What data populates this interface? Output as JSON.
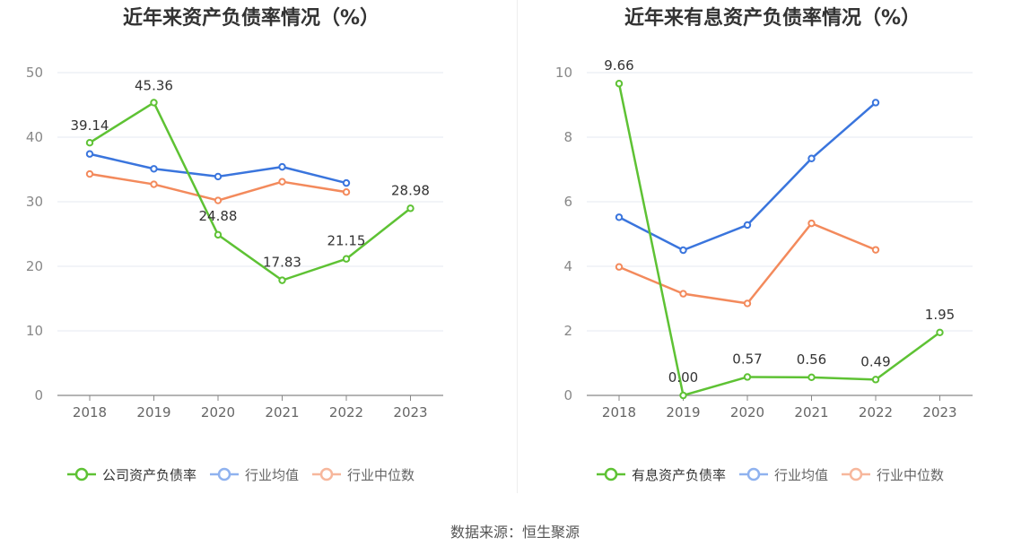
{
  "chart_data": [
    {
      "type": "line",
      "title": "近年来资产负债率情况（%）",
      "categories": [
        "2018",
        "2019",
        "2020",
        "2021",
        "2022",
        "2023"
      ],
      "ylim": [
        0,
        50
      ],
      "yticks": [
        0,
        10,
        20,
        30,
        40,
        50
      ],
      "grid": true,
      "legend_position": "bottom",
      "series": [
        {
          "name": "公司资产负债率",
          "color": "#5ec234",
          "values": [
            39.14,
            45.36,
            24.88,
            17.83,
            21.15,
            28.98
          ],
          "labels": [
            "39.14",
            "45.36",
            "24.88",
            "17.83",
            "21.15",
            "28.98"
          ]
        },
        {
          "name": "行业均值",
          "color": "#3a75dd",
          "values": [
            37.4,
            35.1,
            33.9,
            35.4,
            32.9,
            null
          ]
        },
        {
          "name": "行业中位数",
          "color": "#f38a5c",
          "values": [
            34.3,
            32.7,
            30.2,
            33.1,
            31.5,
            null
          ]
        }
      ]
    },
    {
      "type": "line",
      "title": "近年来有息资产负债率情况（%）",
      "categories": [
        "2018",
        "2019",
        "2020",
        "2021",
        "2022",
        "2023"
      ],
      "ylim": [
        0,
        10
      ],
      "yticks": [
        0,
        2,
        4,
        6,
        8,
        10
      ],
      "grid": true,
      "legend_position": "bottom",
      "series": [
        {
          "name": "有息资产负债率",
          "color": "#5ec234",
          "values": [
            9.66,
            0.0,
            0.57,
            0.56,
            0.49,
            1.95
          ],
          "labels": [
            "9.66",
            "0.00",
            "0.57",
            "0.56",
            "0.49",
            "1.95"
          ]
        },
        {
          "name": "行业均值",
          "color": "#3a75dd",
          "values": [
            5.52,
            4.5,
            5.28,
            7.34,
            9.07,
            null
          ]
        },
        {
          "name": "行业中位数",
          "color": "#f38a5c",
          "values": [
            3.98,
            3.15,
            2.85,
            5.33,
            4.51,
            null
          ]
        }
      ]
    }
  ],
  "legend_colors": {
    "primary": "#5ec234",
    "mean_faded": "#8fb2ef",
    "median_faded": "#f7b79c"
  },
  "source": "数据来源：恒生聚源"
}
